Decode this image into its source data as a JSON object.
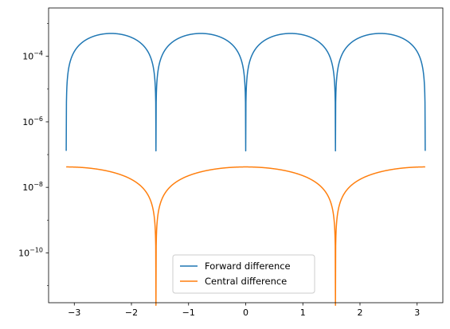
{
  "chart_data": {
    "type": "line",
    "title": "",
    "xlabel": "",
    "ylabel": "",
    "xlim": [
      -3.45,
      3.45
    ],
    "ylim": [
      3e-12,
      0.003
    ],
    "yscale": "log",
    "grid": false,
    "legend_position": "lower-center",
    "x_ticks": [
      -3,
      -2,
      -1,
      0,
      1,
      2,
      3
    ],
    "x_tick_labels": [
      "−3",
      "−2",
      "−1",
      "0",
      "1",
      "2",
      "3"
    ],
    "y_ticks": [
      1e-10,
      1e-08,
      1e-06,
      0.0001
    ],
    "y_tick_labels": [
      {
        "base": "10",
        "exp": "−10"
      },
      {
        "base": "10",
        "exp": "−8"
      },
      {
        "base": "10",
        "exp": "−6"
      },
      {
        "base": "10",
        "exp": "−4"
      }
    ],
    "x_range": [
      -3.1416,
      3.1416
    ],
    "series": [
      {
        "name": "Forward difference",
        "color": "#1f77b4",
        "formula": "0.0005*|sin(2x)|",
        "min_value": 1.3e-07,
        "max_value": 0.0005
      },
      {
        "name": "Central difference",
        "color": "#ff7f0e",
        "formula": "4.2e-8*|cos(x)|",
        "min_value": 2.5e-12,
        "max_value": 4.2e-08
      }
    ]
  }
}
